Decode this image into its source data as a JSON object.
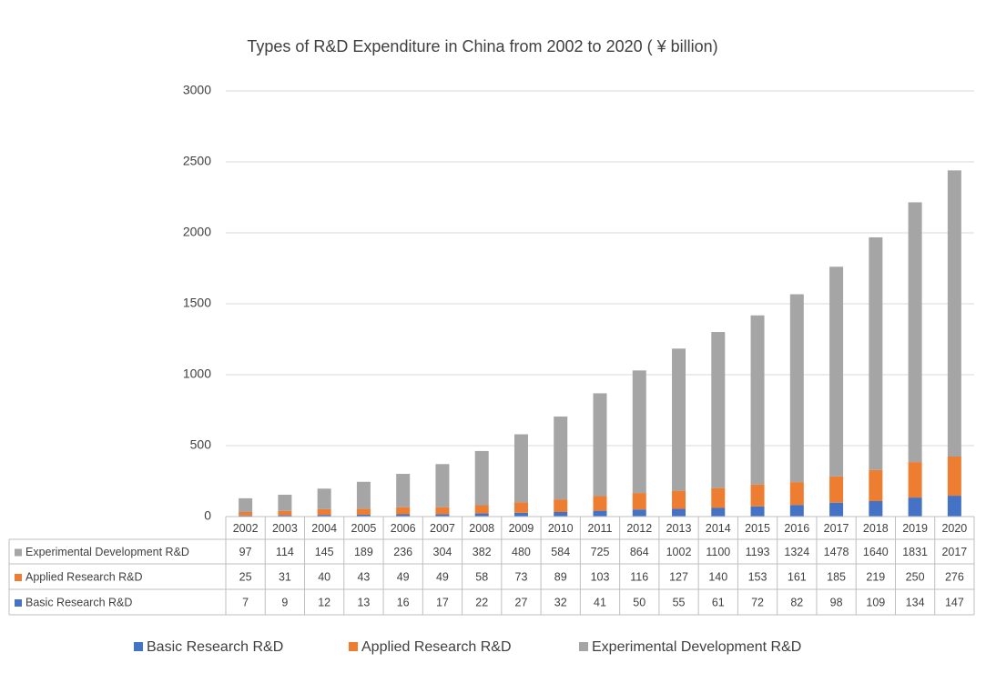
{
  "chart_data": {
    "type": "stacked_bar",
    "title": "Types of R&D Expenditure in China from 2002 to 2020 ( ¥ billion)",
    "categories": [
      "2002",
      "2003",
      "2004",
      "2005",
      "2006",
      "2007",
      "2008",
      "2009",
      "2010",
      "2011",
      "2012",
      "2013",
      "2014",
      "2015",
      "2016",
      "2017",
      "2018",
      "2019",
      "2020"
    ],
    "series": [
      {
        "name": "Basic Research R&D",
        "color": "#4472c4",
        "values": [
          7,
          9,
          12,
          13,
          16,
          17,
          22,
          27,
          32,
          41,
          50,
          55,
          61,
          72,
          82,
          98,
          109,
          134,
          147
        ]
      },
      {
        "name": "Applied Research R&D",
        "color": "#ed7d31",
        "values": [
          25,
          31,
          40,
          43,
          49,
          49,
          58,
          73,
          89,
          103,
          116,
          127,
          140,
          153,
          161,
          185,
          219,
          250,
          276
        ]
      },
      {
        "name": "Experimental Development R&D",
        "color": "#a5a5a5",
        "values": [
          97,
          114,
          145,
          189,
          236,
          304,
          382,
          480,
          584,
          725,
          864,
          1002,
          1100,
          1193,
          1324,
          1478,
          1640,
          1831,
          2017
        ]
      }
    ],
    "ylim": [
      0,
      3000
    ],
    "yticks": [
      0,
      500,
      1000,
      1500,
      2000,
      2500,
      3000
    ],
    "grid": true,
    "legend": "bottom",
    "data_table": true
  }
}
